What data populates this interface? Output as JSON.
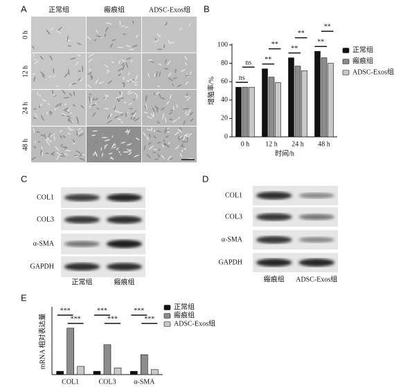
{
  "panel_labels": [
    "A",
    "B",
    "C",
    "D",
    "E"
  ],
  "panel_a": {
    "columns": [
      "正常组",
      "瘢痕组",
      "ADSC-Exos组"
    ],
    "rows": [
      "0 h",
      "12 h",
      "24 h",
      "48 h"
    ]
  },
  "chart_data": [
    {
      "type": "bar",
      "y_label": "增殖率/%",
      "x_label": "时间/h",
      "categories": [
        "0 h",
        "12 h",
        "24 h",
        "48 h"
      ],
      "series": [
        {
          "name": "正常组",
          "color": "#111111",
          "values": [
            54,
            74,
            86,
            93
          ]
        },
        {
          "name": "瘢痕组",
          "color": "#8c8c8c",
          "values": [
            54,
            65,
            77,
            86
          ]
        },
        {
          "name": "ADSC-Exos组",
          "color": "#c8c8c8",
          "values": [
            54,
            59,
            72,
            80
          ]
        }
      ],
      "ylim": [
        0,
        100
      ],
      "yticks": [
        0,
        20,
        40,
        60,
        80,
        100
      ],
      "legend": "right",
      "significance": [
        [
          "ns",
          "ns"
        ],
        [
          "**",
          "**"
        ],
        [
          "**",
          "**"
        ],
        [
          "**",
          "**"
        ]
      ]
    },
    {
      "type": "bar",
      "y_label": "mRNA 相对表达量",
      "categories": [
        "COL1",
        "COL3",
        "α-SMA"
      ],
      "series": [
        {
          "name": "正常组",
          "color": "#111111",
          "values": [
            1,
            1,
            1
          ]
        },
        {
          "name": "瘢痕组",
          "color": "#8c8c8c",
          "values": [
            14,
            9,
            6
          ]
        },
        {
          "name": "ADSC-Exos组",
          "color": "#c8c8c8",
          "values": [
            2.5,
            2,
            1.5
          ]
        }
      ],
      "ylim": [
        0,
        20
      ],
      "legend": "right",
      "significance": [
        [
          "***",
          "***"
        ],
        [
          "***",
          "***"
        ],
        [
          "***",
          "***"
        ]
      ]
    }
  ],
  "panel_c": {
    "rows": [
      "COL1",
      "COL3",
      "α-SMA",
      "GAPDH"
    ],
    "columns": [
      "正常组",
      "瘢痕组"
    ]
  },
  "panel_d": {
    "rows": [
      "COL1",
      "COL3",
      "α-SMA",
      "GAPDH"
    ],
    "columns": [
      "瘢痕组",
      "ADSC-Exos组"
    ]
  }
}
